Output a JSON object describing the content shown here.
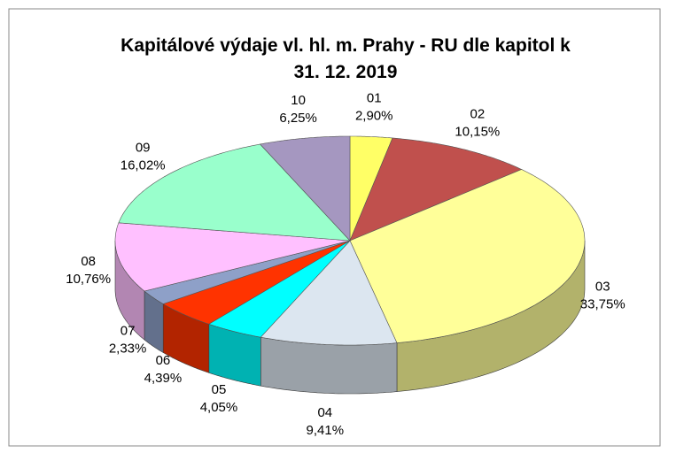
{
  "chart_data": {
    "type": "pie3d",
    "title": "Kapitálové výdaje vl. hl. m. Prahy - RU dle kapitol k 31. 12. 2019",
    "categories": [
      "01",
      "02",
      "03",
      "04",
      "05",
      "06",
      "07",
      "08",
      "09",
      "10"
    ],
    "values": [
      2.9,
      10.15,
      33.75,
      9.41,
      4.05,
      4.39,
      2.33,
      10.76,
      16.02,
      6.25
    ],
    "value_labels": [
      "2,90%",
      "10,15%",
      "33,75%",
      "9,41%",
      "4,05%",
      "4,39%",
      "2,33%",
      "10,76%",
      "16,02%",
      "6,25%"
    ],
    "colors": [
      "#ffff66",
      "#c0504d",
      "#ffff99",
      "#dce6f0",
      "#00ffff",
      "#ff3300",
      "#8ea0c8",
      "#ffc0ff",
      "#99ffcc",
      "#a597c0"
    ]
  }
}
